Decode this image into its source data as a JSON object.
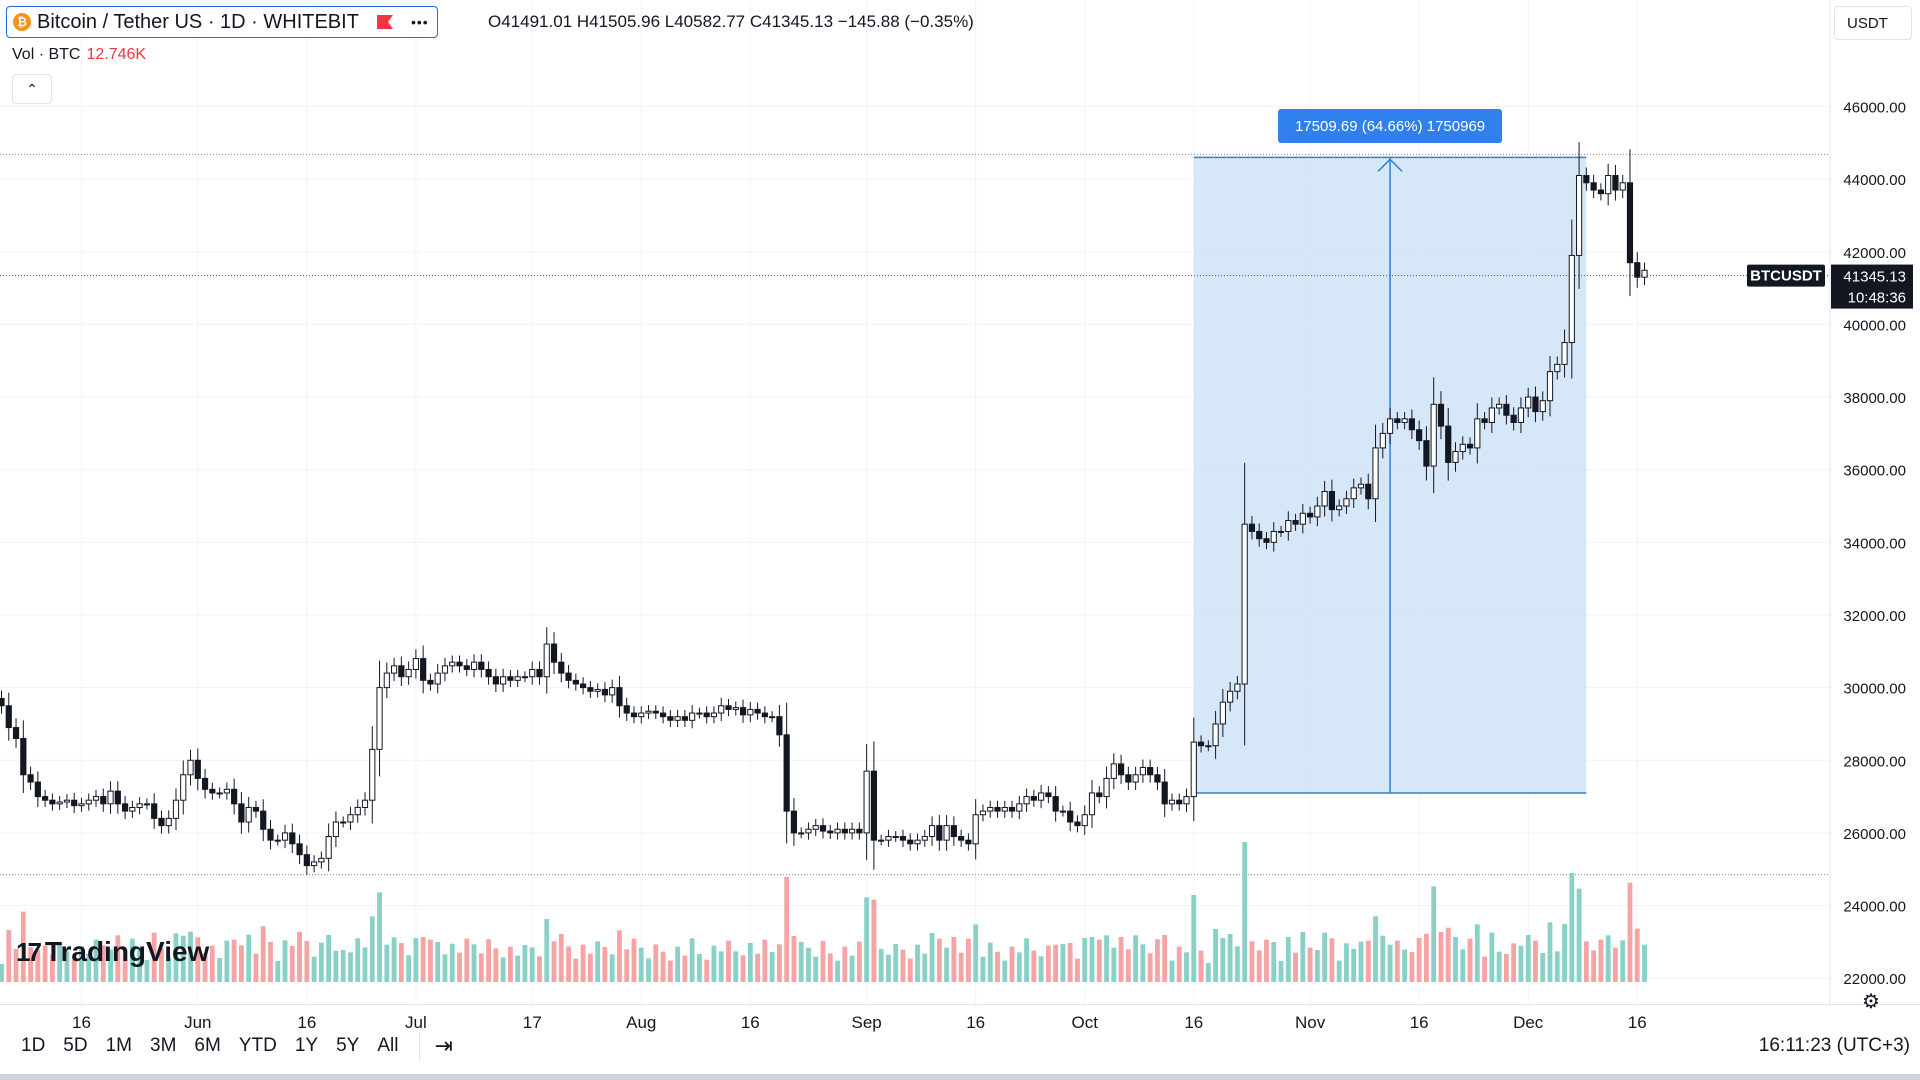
{
  "header": {
    "symbol_title": "Bitcoin / Tether US · 1D · WHITEBIT",
    "more": "•••",
    "ohlc": "O41491.01 H41505.96 L40582.77 C41345.13 −145.88 (−0.35%)",
    "volume_label": "Vol · BTC",
    "volume_value": "12.746K",
    "collapse": "⌃",
    "currency": "USDT",
    "coin_glyph": "₿"
  },
  "logo": {
    "mark": "17",
    "text": "TradingView"
  },
  "bottom": {
    "ranges": [
      "1D",
      "5D",
      "1M",
      "3M",
      "6M",
      "YTD",
      "1Y",
      "5Y",
      "All"
    ],
    "calendar": "⇥",
    "clock": "16:11:23 (UTC+3)",
    "settings": "⚙"
  },
  "colors": {
    "up": "#131722",
    "down": "#131722",
    "vol_up": "#89d1c7",
    "vol_down": "#f5a3a3",
    "range_fill": "#cfe3f7",
    "range_line": "#2f7fd4",
    "accent": "#2962ff"
  },
  "chart_data": {
    "type": "candlestick",
    "ylim": [
      22000,
      47000
    ],
    "y_ticks": [
      22000,
      24000,
      26000,
      28000,
      30000,
      32000,
      34000,
      36000,
      38000,
      40000,
      42000,
      44000,
      46000
    ],
    "y_tick_labels": [
      "22000.00",
      "24000.00",
      "26000.00",
      "28000.00",
      "30000.00",
      "32000.00",
      "34000.00",
      "36000.00",
      "38000.00",
      "40000.00",
      "42000.00",
      "44000.00",
      "46000.00"
    ],
    "x_ticks": [
      {
        "label": "16",
        "date": "2023-05-16"
      },
      {
        "label": "Jun",
        "date": "2023-06-01"
      },
      {
        "label": "16",
        "date": "2023-06-16"
      },
      {
        "label": "Jul",
        "date": "2023-07-01"
      },
      {
        "label": "17",
        "date": "2023-07-17"
      },
      {
        "label": "Aug",
        "date": "2023-08-01"
      },
      {
        "label": "16",
        "date": "2023-08-16"
      },
      {
        "label": "Sep",
        "date": "2023-09-01"
      },
      {
        "label": "16",
        "date": "2023-09-16"
      },
      {
        "label": "Oct",
        "date": "2023-10-01"
      },
      {
        "label": "16",
        "date": "2023-10-16"
      },
      {
        "label": "Nov",
        "date": "2023-11-01"
      },
      {
        "label": "16",
        "date": "2023-11-16"
      },
      {
        "label": "Dec",
        "date": "2023-12-01"
      },
      {
        "label": "16",
        "date": "2023-12-16"
      }
    ],
    "first_date": "2023-05-05",
    "closes": [
      29500,
      28900,
      28600,
      27600,
      27400,
      27000,
      26900,
      26800,
      26850,
      26900,
      26750,
      26800,
      26900,
      27000,
      26800,
      27150,
      26800,
      26600,
      26700,
      26800,
      26800,
      26400,
      26200,
      26400,
      26900,
      27600,
      28000,
      27500,
      27200,
      27100,
      27100,
      27200,
      26800,
      26300,
      26700,
      26600,
      26100,
      25800,
      25800,
      26000,
      25700,
      25400,
      25100,
      25200,
      25300,
      25900,
      26300,
      26300,
      26500,
      26700,
      26900,
      28300,
      30000,
      30400,
      30600,
      30300,
      30500,
      30800,
      30200,
      30100,
      30400,
      30600,
      30700,
      30600,
      30500,
      30700,
      30500,
      30300,
      30100,
      30300,
      30200,
      30300,
      30300,
      30500,
      30300,
      31200,
      30700,
      30400,
      30200,
      30100,
      30000,
      29900,
      29950,
      29800,
      30000,
      29500,
      29300,
      29200,
      29300,
      29350,
      29300,
      29200,
      29100,
      29200,
      29100,
      29300,
      29300,
      29200,
      29300,
      29500,
      29400,
      29450,
      29250,
      29400,
      29300,
      29200,
      29200,
      28700,
      26600,
      26000,
      26000,
      26100,
      26200,
      26050,
      26000,
      26100,
      26000,
      26100,
      26000,
      27700,
      25800,
      25800,
      25900,
      25900,
      25800,
      25700,
      25800,
      25900,
      26200,
      25800,
      26200,
      25900,
      25800,
      25700,
      26500,
      26600,
      26700,
      26600,
      26700,
      26600,
      26800,
      27000,
      26900,
      27100,
      27000,
      26600,
      26600,
      26300,
      26200,
      26500,
      27100,
      27000,
      27500,
      27900,
      27600,
      27400,
      27600,
      27800,
      27600,
      27400,
      26800,
      26900,
      26800,
      27000,
      28500,
      28400,
      28400,
      29000,
      29600,
      29900,
      30100,
      34500,
      34300,
      34100,
      34000,
      34300,
      34300,
      34600,
      34500,
      34800,
      34700,
      35000,
      35400,
      34900,
      35000,
      35200,
      35500,
      35600,
      35200,
      36600,
      37000,
      37400,
      37300,
      37400,
      37100,
      36800,
      36100,
      37800,
      37200,
      36200,
      36500,
      36700,
      36600,
      37400,
      37300,
      37700,
      37800,
      37500,
      37300,
      37700,
      38000,
      37600,
      37900,
      38700,
      38900,
      39500,
      41900,
      44100,
      43900,
      43700,
      43600,
      44100,
      43700,
      43900,
      41700,
      41300,
      41491
    ],
    "measure_label": "17509.69 (64.66%) 1750969",
    "last_price": "41345.13",
    "last_symbol": "BTCUSDT",
    "countdown": "10:48:36",
    "range_low": 27100,
    "range_high": 44600,
    "range_start_index": 164,
    "range_end_index": 218
  }
}
